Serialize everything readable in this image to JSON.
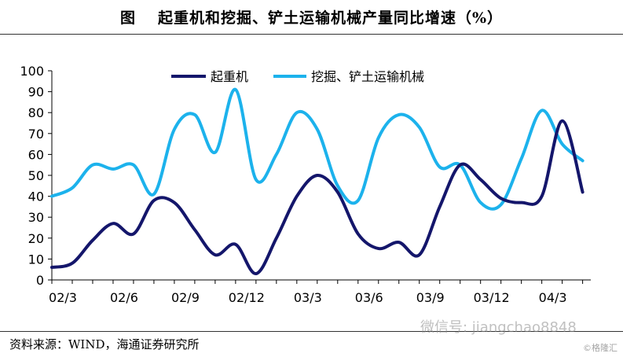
{
  "header": {
    "figure_label": "图",
    "title": "起重机和挖掘、铲土运输机械产量同比增速（%）"
  },
  "footer": {
    "source": "资料来源：WIND，海通证券研究所",
    "watermark": "微信号: jiangchao8848",
    "watermark_brand": "©格隆汇"
  },
  "colors": {
    "series1": "#14166b",
    "series2": "#1cb2ec"
  },
  "chart_data": {
    "type": "line",
    "title": "起重机和挖掘、铲土运输机械产量同比增速（%）",
    "xlabel": "",
    "ylabel": "",
    "ylim": [
      0,
      100
    ],
    "yticks": [
      0,
      10,
      20,
      30,
      40,
      50,
      60,
      70,
      80,
      90,
      100
    ],
    "xlim": [
      0,
      26.4
    ],
    "xtick_labels": [
      "02/3",
      "02/6",
      "02/9",
      "02/12",
      "03/3",
      "03/6",
      "03/9",
      "03/12",
      "04/3"
    ],
    "xtick_index": [
      0,
      3,
      6,
      9,
      12,
      15,
      18,
      21,
      24
    ],
    "legend_position": "top-center",
    "grid": false,
    "x": [
      0,
      1,
      2,
      3,
      4,
      5,
      6,
      7,
      8,
      9,
      10,
      11,
      12,
      13,
      14,
      15,
      16,
      17,
      18,
      19,
      20,
      21,
      22,
      23,
      24,
      25,
      26
    ],
    "series": [
      {
        "name": "起重机",
        "values": [
          6,
          8,
          19,
          27,
          22,
          38,
          37,
          24,
          12,
          17,
          3,
          20,
          40,
          50,
          42,
          22,
          15,
          18,
          12,
          35,
          55,
          48,
          39,
          37,
          40,
          76,
          42
        ]
      },
      {
        "name": "挖掘、铲土运输机械",
        "values": [
          40,
          44,
          55,
          53,
          55,
          41,
          72,
          79,
          61,
          91,
          48,
          60,
          80,
          72,
          45,
          38,
          68,
          79,
          73,
          54,
          55,
          37,
          36,
          58,
          81,
          65,
          57
        ]
      }
    ]
  }
}
